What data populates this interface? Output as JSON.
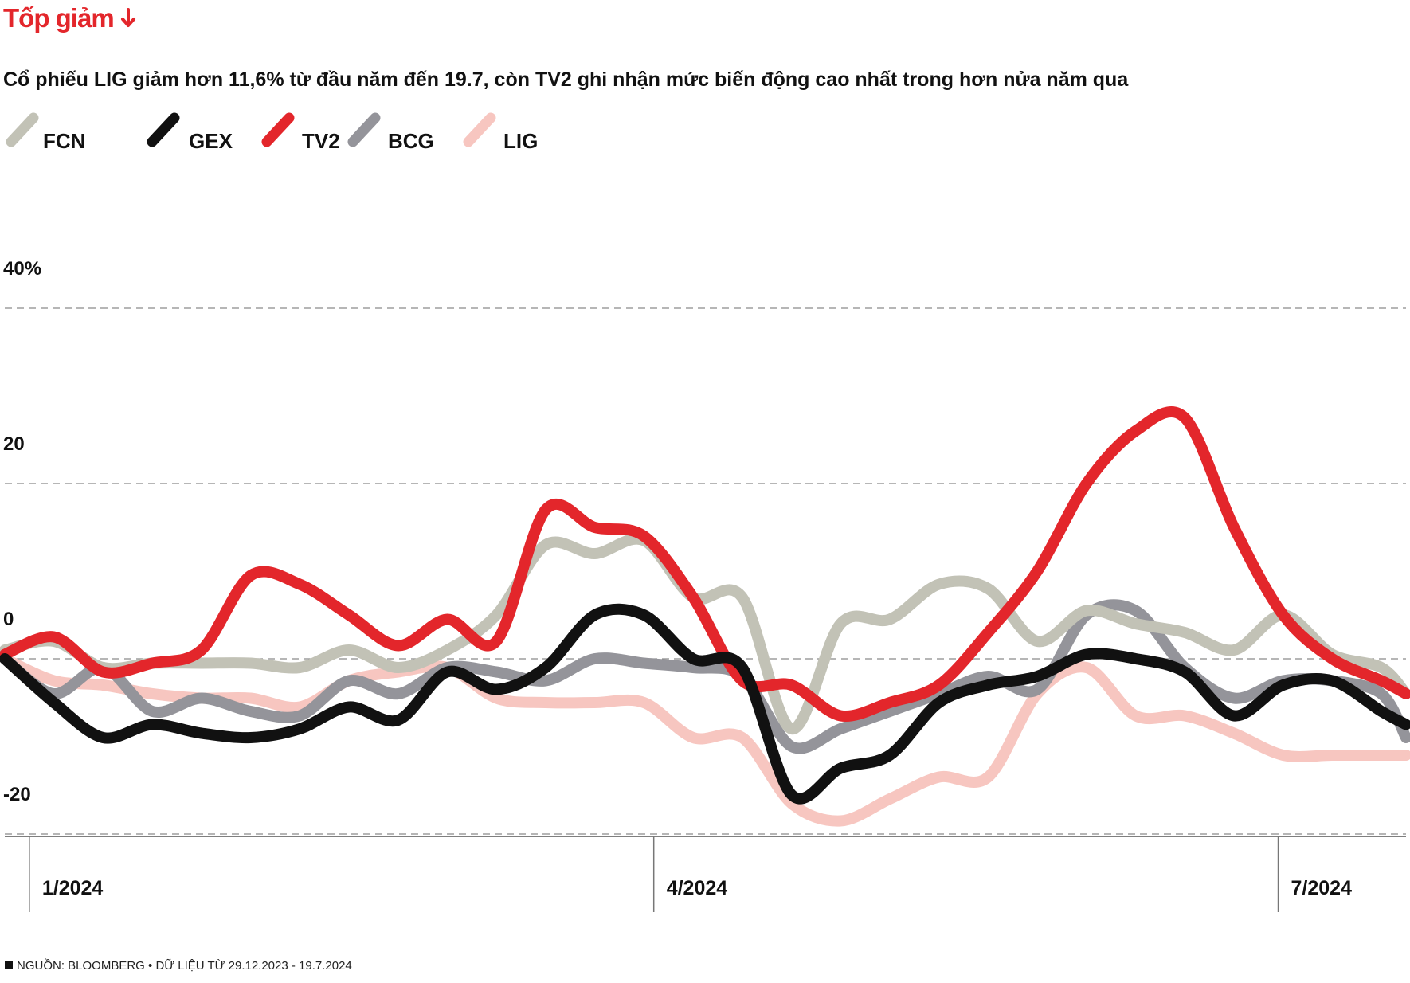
{
  "header": {
    "kicker": "Tốp giảm",
    "subtitle": "Cổ phiếu LIG giảm hơn 11,6% từ đầu năm đến 19.7, còn TV2 ghi nhận mức biến động cao nhất trong hơn nửa năm qua"
  },
  "footer": {
    "source": "NGUỒN: BLOOMBERG • DỮ LIỆU TỪ 29.12.2023 - 19.7.2024"
  },
  "chart_data": {
    "type": "line",
    "title": "Tốp giảm",
    "subtitle": "Cổ phiếu LIG giảm hơn 11,6% từ đầu năm đến 19.7, còn TV2 ghi nhận mức biến động cao nhất trong hơn nửa năm qua",
    "xlabel": "",
    "ylabel": "",
    "ylim": [
      -20,
      40
    ],
    "xlim": [
      0,
      28.5
    ],
    "y_ticks": [
      {
        "value": 40,
        "label": "40%"
      },
      {
        "value": 20,
        "label": "20"
      },
      {
        "value": 0,
        "label": "0"
      },
      {
        "value": -20,
        "label": "-20"
      }
    ],
    "x_ticks": [
      {
        "value": 0.5,
        "label": "1/2024"
      },
      {
        "value": 13.2,
        "label": "4/2024"
      },
      {
        "value": 25.9,
        "label": "7/2024"
      }
    ],
    "grid": true,
    "x": [
      0,
      1,
      2,
      3,
      4,
      5,
      6,
      7,
      8,
      9,
      10,
      11,
      12,
      13,
      14,
      15,
      16,
      17,
      18,
      19,
      20,
      21,
      22,
      23,
      24,
      25,
      26,
      27,
      28,
      28.5
    ],
    "series": [
      {
        "name": "FCN",
        "color": "#c2c2b6",
        "values": [
          1,
          2,
          -1,
          -0.5,
          -0.5,
          -0.5,
          -1,
          1,
          -1,
          1,
          5,
          13,
          12,
          13.5,
          7,
          7,
          -8,
          4,
          4.5,
          8.5,
          8,
          2,
          5.5,
          4,
          3,
          1,
          5,
          0.5,
          -1,
          -4
        ]
      },
      {
        "name": "GEX",
        "color": "#111111",
        "values": [
          0,
          -5,
          -9,
          -7.5,
          -8.5,
          -9,
          -8,
          -5.5,
          -7,
          -1.5,
          -3.5,
          -1,
          5,
          5,
          0,
          -1,
          -15.5,
          -12.5,
          -11,
          -5,
          -3,
          -2,
          0.5,
          0,
          -1.5,
          -6.5,
          -3,
          -2.5,
          -6,
          -7.5
        ]
      },
      {
        "name": "TV2",
        "color": "#e3262b",
        "values": [
          0.5,
          2.5,
          -1.5,
          -0.5,
          1,
          9.5,
          8.5,
          5,
          1.5,
          4.5,
          2,
          17,
          15,
          14,
          7,
          -2.5,
          -3,
          -6.5,
          -5,
          -3,
          3,
          10,
          20,
          26,
          27.5,
          15,
          5,
          0,
          -2.5,
          -4
        ]
      },
      {
        "name": "BCG",
        "color": "#94949a",
        "values": [
          0,
          -4,
          -1,
          -6,
          -4.5,
          -6,
          -6.5,
          -2.5,
          -4,
          -1,
          -1.5,
          -2.5,
          0,
          -0.5,
          -1,
          -2,
          -10,
          -8,
          -6,
          -4,
          -2,
          -3.5,
          5,
          5.5,
          -1,
          -4.5,
          -2.5,
          -2.5,
          -4,
          -9
        ]
      },
      {
        "name": "LIG",
        "color": "#f7c6c0",
        "values": [
          0,
          -2.5,
          -3,
          -4,
          -4.5,
          -4.5,
          -5.5,
          -2.5,
          -1.5,
          -1,
          -4.5,
          -5,
          -5,
          -5,
          -9,
          -9,
          -16.5,
          -18.5,
          -16,
          -13.5,
          -13.5,
          -4,
          -1,
          -6.5,
          -6.5,
          -8.5,
          -11,
          -11,
          -11,
          -11
        ]
      }
    ]
  }
}
